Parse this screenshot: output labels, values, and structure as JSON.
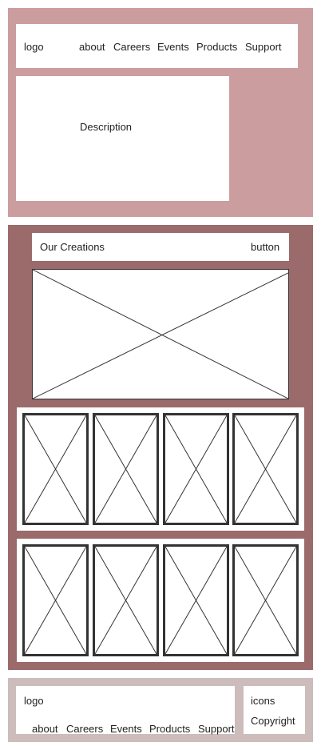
{
  "header": {
    "logo": "logo",
    "nav": [
      "about",
      "Careers",
      "Events",
      "Products",
      "Support"
    ]
  },
  "hero": {
    "description": "Description"
  },
  "creations": {
    "title": "Our Creations",
    "button_label": "button",
    "image_placeholder_icon": "image-placeholder-icon",
    "rows": [
      {
        "items": [
          "image-placeholder-icon",
          "image-placeholder-icon",
          "image-placeholder-icon",
          "image-placeholder-icon"
        ]
      },
      {
        "items": [
          "image-placeholder-icon",
          "image-placeholder-icon",
          "image-placeholder-icon",
          "image-placeholder-icon"
        ]
      }
    ]
  },
  "footer": {
    "logo": "logo",
    "nav": [
      "about",
      "Careers",
      "Events",
      "Products",
      "Support"
    ],
    "icons_label": "icons",
    "copyright": "Copyright"
  },
  "colors": {
    "hero_bg": "#cc9d9e",
    "creations_bg": "#9b6a6b",
    "footer_bg": "#ccbcbb",
    "panel": "#ffffff",
    "line": "#333333"
  }
}
